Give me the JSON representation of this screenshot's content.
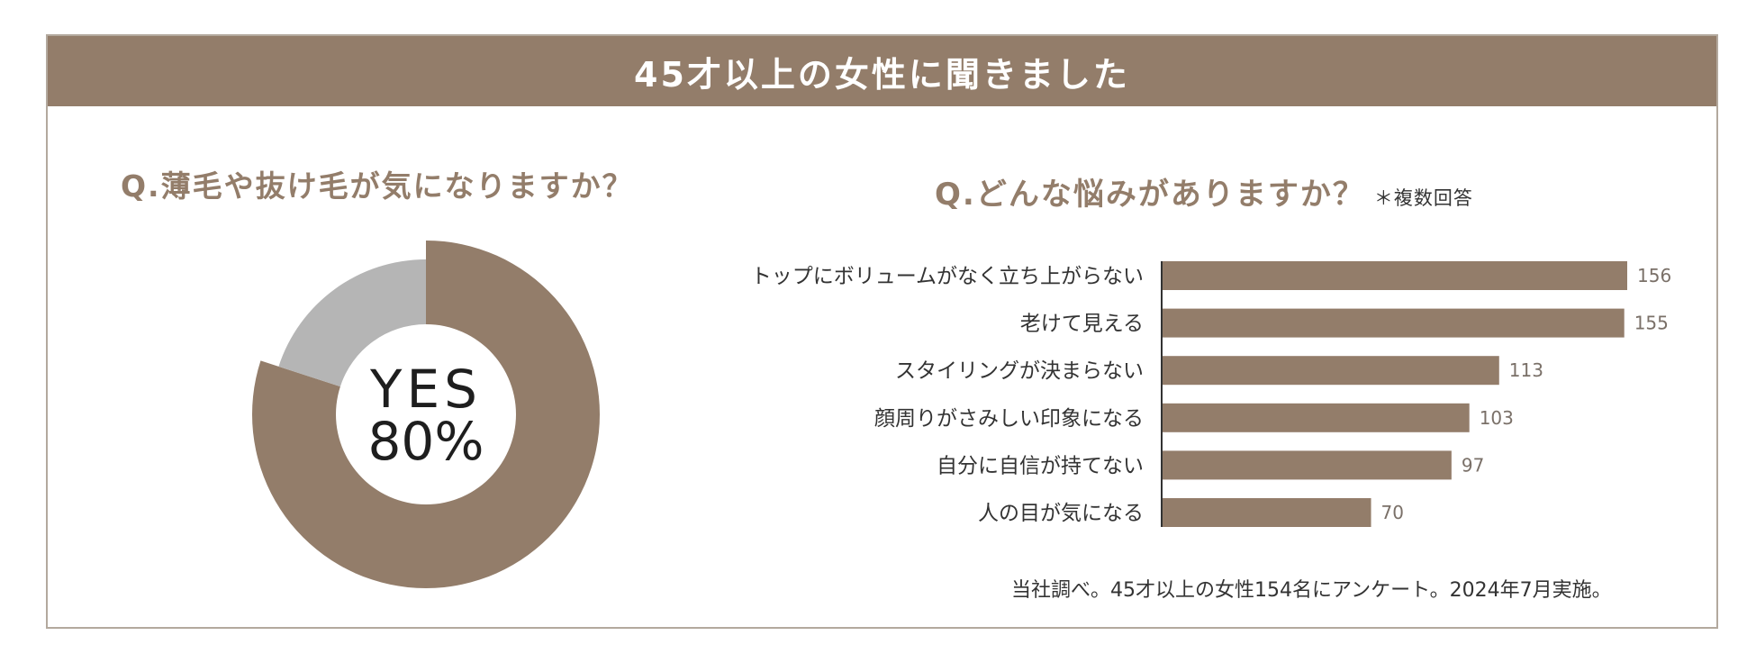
{
  "colors": {
    "accent": "#937d6a",
    "gray": "#b5b5b5",
    "border": "#b3a99e"
  },
  "banner": {
    "title": "45才以上の女性に聞きました"
  },
  "left_panel": {
    "question": "Q.薄毛や抜け毛が気になりますか？",
    "center_label": "YES",
    "center_value": "80%"
  },
  "right_panel": {
    "question": "Q.どんな悩みがありますか？",
    "note": "＊複数回答"
  },
  "source": "当社調べ。45才以上の女性154名にアンケート。2024年7月実施。",
  "chart_data": [
    {
      "type": "pie",
      "categories": [
        "YES",
        ""
      ],
      "values": [
        80,
        20
      ],
      "colors": [
        "#937d6a",
        "#b5b5b5"
      ],
      "donut": true,
      "title": "Q.薄毛や抜け毛が気になりますか？"
    },
    {
      "type": "bar",
      "orientation": "horizontal",
      "title": "Q.どんな悩みがありますか？",
      "categories": [
        "トップにボリュームがなく立ち上がらない",
        "老けて見える",
        "スタイリングが決まらない",
        "顔周りがさみしい印象になる",
        "自分に自信が持てない",
        "人の目が気になる"
      ],
      "values": [
        156,
        155,
        113,
        103,
        97,
        70
      ],
      "data_labels": [
        "156",
        "155",
        "113",
        "103",
        "97",
        "70"
      ],
      "color": "#937d6a",
      "grid": false
    }
  ]
}
